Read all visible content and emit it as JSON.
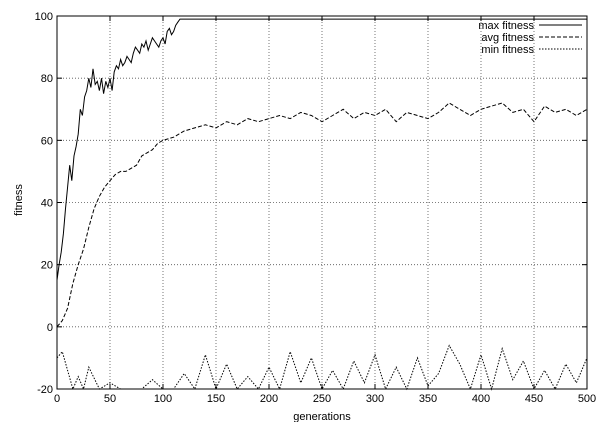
{
  "chart_data": {
    "type": "line",
    "title": "",
    "xlabel": "generations",
    "ylabel": "fitness",
    "xlim": [
      0,
      500
    ],
    "ylim": [
      -20,
      100
    ],
    "xticks": [
      0,
      50,
      100,
      150,
      200,
      250,
      300,
      350,
      400,
      450,
      500
    ],
    "yticks": [
      -20,
      0,
      20,
      40,
      60,
      80,
      100
    ],
    "grid": true,
    "grid_style": "dotted",
    "legend_position": "top-right",
    "series": [
      {
        "name": "max fitness",
        "style": "solid",
        "x": [
          0,
          2,
          4,
          6,
          8,
          10,
          12,
          14,
          16,
          18,
          20,
          22,
          24,
          26,
          28,
          30,
          32,
          34,
          36,
          38,
          40,
          42,
          44,
          46,
          48,
          50,
          52,
          54,
          56,
          58,
          60,
          62,
          64,
          66,
          68,
          70,
          72,
          74,
          76,
          78,
          80,
          82,
          84,
          86,
          88,
          90,
          92,
          94,
          96,
          98,
          100,
          102,
          104,
          106,
          108,
          110,
          112,
          114,
          116,
          118,
          120,
          150,
          200,
          250,
          300,
          350,
          400,
          450,
          500
        ],
        "values": [
          15,
          20,
          24,
          30,
          38,
          45,
          52,
          47,
          55,
          58,
          62,
          70,
          68,
          74,
          76,
          80,
          77,
          83,
          78,
          79,
          76,
          80,
          75,
          79,
          77,
          80,
          76,
          82,
          84,
          83,
          86,
          84,
          85,
          87,
          86,
          85,
          88,
          90,
          89,
          88,
          91,
          90,
          92,
          89,
          91,
          93,
          92,
          91,
          90,
          92,
          93,
          91,
          95,
          96,
          94,
          95,
          97,
          98,
          99,
          99,
          99,
          99,
          99,
          99,
          99,
          99,
          99,
          99,
          99
        ]
      },
      {
        "name": "avg fitness",
        "style": "dashed",
        "x": [
          0,
          5,
          10,
          15,
          20,
          25,
          30,
          35,
          40,
          45,
          50,
          55,
          60,
          65,
          70,
          75,
          80,
          85,
          90,
          95,
          100,
          110,
          120,
          130,
          140,
          150,
          160,
          170,
          180,
          190,
          200,
          210,
          220,
          230,
          240,
          250,
          260,
          270,
          280,
          290,
          300,
          310,
          320,
          330,
          340,
          350,
          360,
          370,
          380,
          390,
          400,
          410,
          420,
          430,
          440,
          450,
          460,
          470,
          480,
          490,
          500
        ],
        "values": [
          0,
          2,
          6,
          14,
          20,
          25,
          32,
          38,
          42,
          45,
          47,
          49,
          50,
          50,
          51,
          52,
          55,
          56,
          57,
          59,
          60,
          61,
          63,
          64,
          65,
          64,
          66,
          65,
          67,
          66,
          67,
          68,
          67,
          69,
          68,
          66,
          68,
          70,
          67,
          69,
          68,
          70,
          66,
          69,
          68,
          67,
          69,
          72,
          70,
          68,
          70,
          71,
          72,
          69,
          70,
          66,
          71,
          69,
          70,
          68,
          70
        ]
      },
      {
        "name": "min fitness",
        "style": "dotted",
        "x": [
          0,
          5,
          10,
          15,
          20,
          25,
          30,
          40,
          50,
          60,
          70,
          80,
          90,
          100,
          110,
          120,
          130,
          140,
          150,
          160,
          170,
          180,
          190,
          200,
          210,
          220,
          230,
          240,
          250,
          260,
          270,
          280,
          290,
          300,
          310,
          320,
          330,
          340,
          350,
          360,
          370,
          380,
          390,
          400,
          410,
          420,
          430,
          440,
          450,
          460,
          470,
          480,
          490,
          500
        ],
        "values": [
          -10,
          -8,
          -14,
          -20,
          -16,
          -20,
          -13,
          -20,
          -18,
          -20,
          -20,
          -20,
          -17,
          -20,
          -20,
          -15,
          -20,
          -9,
          -20,
          -12,
          -20,
          -16,
          -20,
          -13,
          -20,
          -8,
          -18,
          -10,
          -20,
          -14,
          -20,
          -11,
          -18,
          -9,
          -20,
          -13,
          -20,
          -10,
          -19,
          -15,
          -6,
          -12,
          -20,
          -9,
          -20,
          -7,
          -17,
          -11,
          -20,
          -14,
          -20,
          -12,
          -18,
          -10
        ]
      }
    ]
  }
}
